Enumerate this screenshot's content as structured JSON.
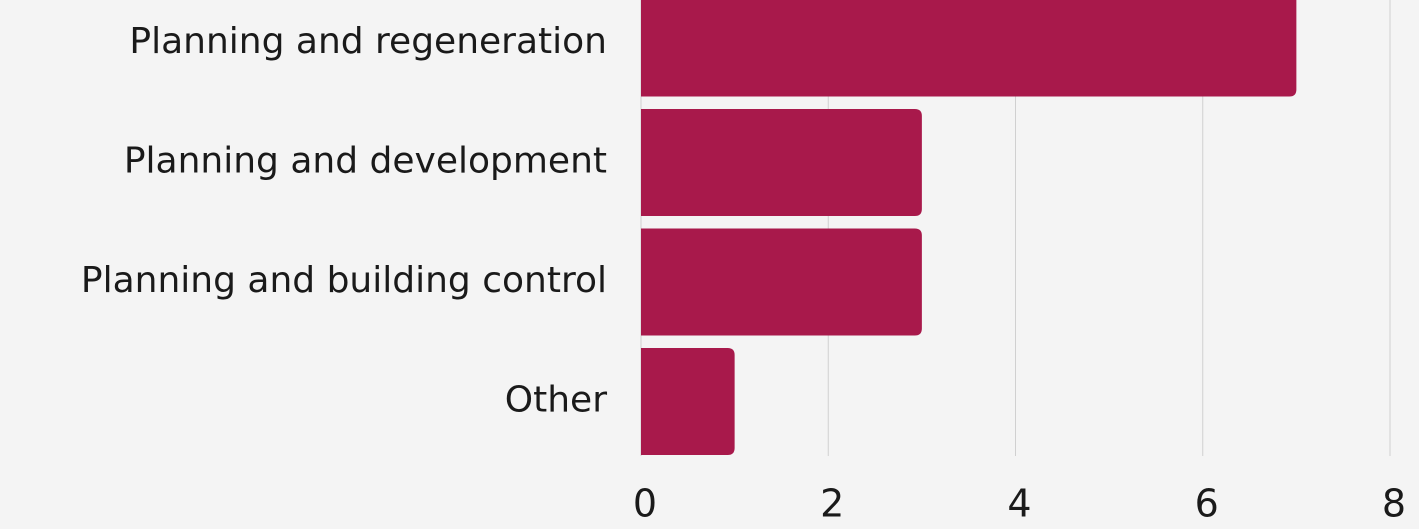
{
  "chart_data": {
    "type": "bar",
    "categories": [
      "Planning and regeneration",
      "Planning and development",
      "Planning and building control",
      "Other"
    ],
    "values": [
      7,
      3,
      3,
      1
    ],
    "color": "#a8194b",
    "xlim": [
      0,
      8
    ],
    "xticks": [
      0,
      2,
      4,
      6,
      8
    ],
    "grid": true
  }
}
